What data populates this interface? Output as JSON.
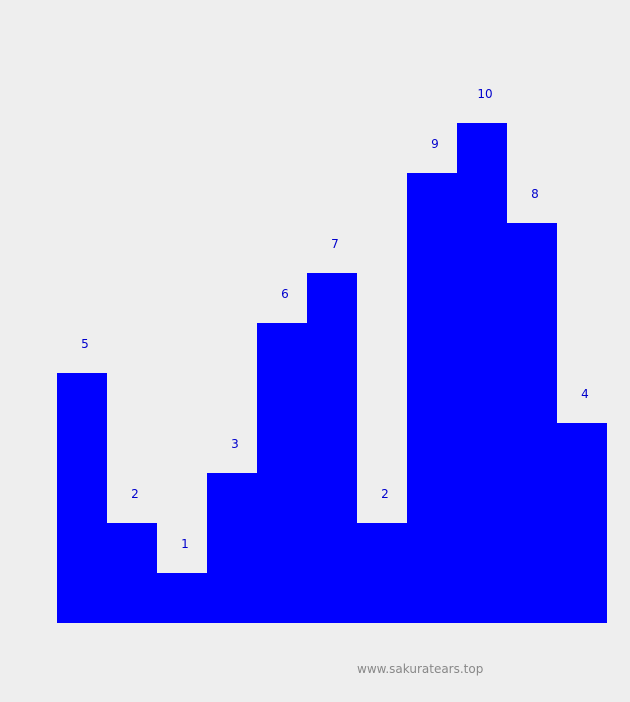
{
  "chart_data": {
    "type": "bar",
    "categories": [
      "",
      "",
      "",
      "",
      "",
      "",
      "",
      "",
      "",
      "",
      ""
    ],
    "values": [
      5,
      2,
      1,
      3,
      6,
      7,
      2,
      9,
      10,
      8,
      4
    ],
    "title": "",
    "xlabel": "",
    "ylabel": "",
    "ylim": [
      0,
      10
    ],
    "grid": false,
    "bar_color": "#0000ff",
    "label_color": "#0000cc"
  },
  "watermark": "www.sakuratears.top",
  "colors": {
    "background": "#eeeeee",
    "watermark": "#888888"
  }
}
